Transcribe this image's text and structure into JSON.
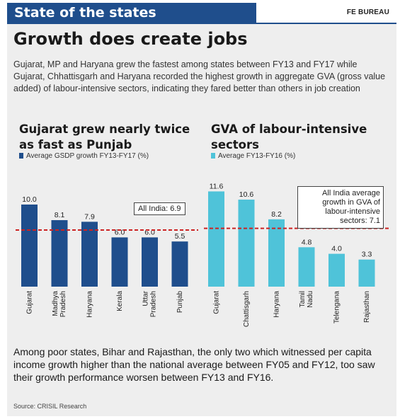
{
  "header": {
    "section": "State of the states",
    "byline": "FE BUREAU"
  },
  "headline": "Growth does create jobs",
  "intro": "Gujarat, MP and Haryana grew the fastest among states between FY13 and FY17 while Gujarat, Chhattisgarh and Haryana recorded the highest growth in aggregate GVA (gross value added) of labour-intensive sectors, indicating they fared better than others in job creation",
  "footnote": "Among poor states, Bihar and Rajasthan, the only two which witnessed per capita income growth higher than the national average between FY05 and FY12, too saw their growth performance worsen between FY13 and FY16.",
  "source": "Source: CRISIL Research",
  "colors": {
    "brand": "#1f4e8c",
    "left_bars": "#1f4e8c",
    "right_bars": "#4fc3d9",
    "reference_line": "#cc2222",
    "panel": "#eeeeee"
  },
  "chart_data": [
    {
      "type": "bar",
      "title": "Gujarat grew nearly twice as fast as Punjab",
      "categories": [
        "Gujarat",
        "Madhya Pradesh",
        "Haryana",
        "Kerala",
        "Uttar Pradesh",
        "Punjab"
      ],
      "series": [
        {
          "name": "Average GSDP growth FY13-FY17 (%)",
          "values": [
            10.0,
            8.1,
            7.9,
            6.0,
            6.0,
            5.5
          ]
        }
      ],
      "value_labels": [
        "10.0",
        "8.1",
        "7.9",
        "6.0",
        "6.0",
        "5.5"
      ],
      "reference_line": {
        "value": 6.9,
        "label": "All India: 6.9",
        "style": "dashed"
      },
      "ylim": [
        0,
        12
      ],
      "xlabel": "",
      "ylabel": "",
      "grid": false
    },
    {
      "type": "bar",
      "title": "GVA of labour-intensive sectors",
      "categories": [
        "Gujarat",
        "Chattisgarh",
        "Haryana",
        "Tamil Nadu",
        "Telengana",
        "Rajasthan"
      ],
      "series": [
        {
          "name": "Average FY13-FY16 (%)",
          "values": [
            11.6,
            10.6,
            8.2,
            4.8,
            4.0,
            3.3
          ]
        }
      ],
      "value_labels": [
        "11.6",
        "10.6",
        "8.2",
        "4.8",
        "4.0",
        "3.3"
      ],
      "reference_line": {
        "value": 7.1,
        "label": "All India average growth in GVA of labour-intensive sectors: 7.1",
        "style": "dashed"
      },
      "ylim": [
        0,
        12
      ],
      "xlabel": "",
      "ylabel": "",
      "grid": false
    }
  ]
}
